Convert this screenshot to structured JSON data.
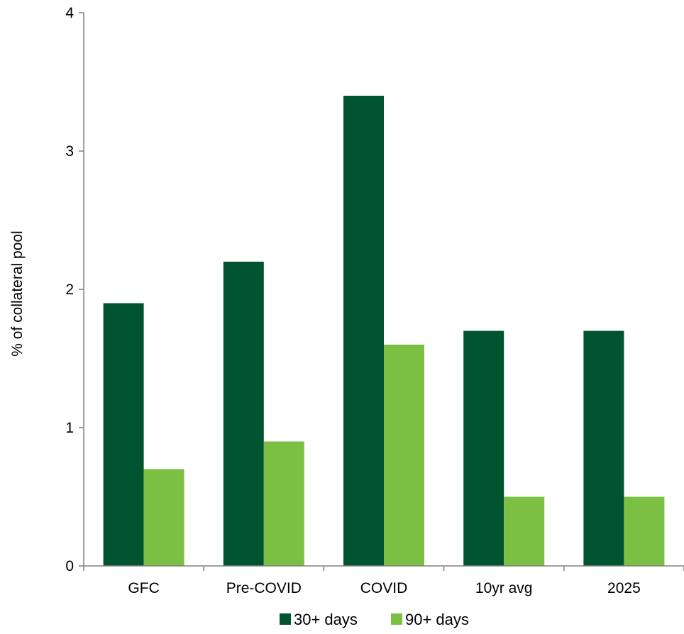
{
  "chart_data": {
    "type": "bar",
    "title": "",
    "xlabel": "",
    "ylabel": "% of collateral pool",
    "categories": [
      "GFC",
      "Pre-COVID",
      "COVID",
      "10yr avg",
      "2025"
    ],
    "series": [
      {
        "name": "30+ days",
        "color": "#005530",
        "values": [
          1.9,
          2.2,
          3.4,
          1.7,
          1.7
        ]
      },
      {
        "name": "90+ days",
        "color": "#7bc043",
        "values": [
          0.7,
          0.9,
          1.6,
          0.5,
          0.5
        ]
      }
    ],
    "ylim": [
      0,
      4
    ],
    "yticks": [
      "0",
      "1",
      "2",
      "3",
      "4"
    ],
    "grid": false,
    "legend_position": "bottom"
  }
}
